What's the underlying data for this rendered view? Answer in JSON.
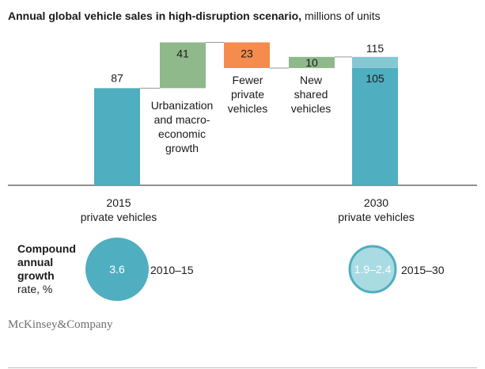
{
  "title_bold": "Annual global vehicle sales in high-disruption scenario,",
  "title_rest": " millions of units",
  "chart_data": {
    "type": "waterfall",
    "categories": [
      "2015 private vehicles",
      "Urbanization and macro-economic growth",
      "Fewer private vehicles",
      "New shared vehicles",
      "2030 private vehicles"
    ],
    "bars": [
      {
        "label": "2015\nprivate vehicles",
        "value": 87,
        "kind": "total",
        "color": "#4faebf"
      },
      {
        "label": "Urbanization\nand macro-\neconomic\ngrowth",
        "value": 41,
        "kind": "increase",
        "color": "#8fb98a"
      },
      {
        "label": "Fewer\nprivate\nvehicles",
        "value": -23,
        "kind": "decrease",
        "color": "#f58b4c"
      },
      {
        "label": "New\nshared\nvehicles",
        "value": 10,
        "kind": "increase",
        "color": "#8fb98a"
      },
      {
        "label": "2030\nprivate vehicles",
        "value": 105,
        "top_value": 115,
        "kind": "total",
        "color": "#4faebf",
        "top_color": "#86c7d4"
      }
    ],
    "data_labels": [
      "87",
      "41",
      "23",
      "10",
      "115",
      "105"
    ],
    "ylim": [
      0,
      130
    ]
  },
  "cagr": {
    "label_bold": "Compound annual growth",
    "label_rest": "rate, %",
    "items": [
      {
        "value": "3.6",
        "period": "2010–15",
        "color": "#4faebf"
      },
      {
        "value": "1.9–2.4",
        "period": "2015–30",
        "color": "#a9dbe3",
        "stroke": "#4faebf"
      }
    ]
  },
  "brand": "McKinsey&Company"
}
